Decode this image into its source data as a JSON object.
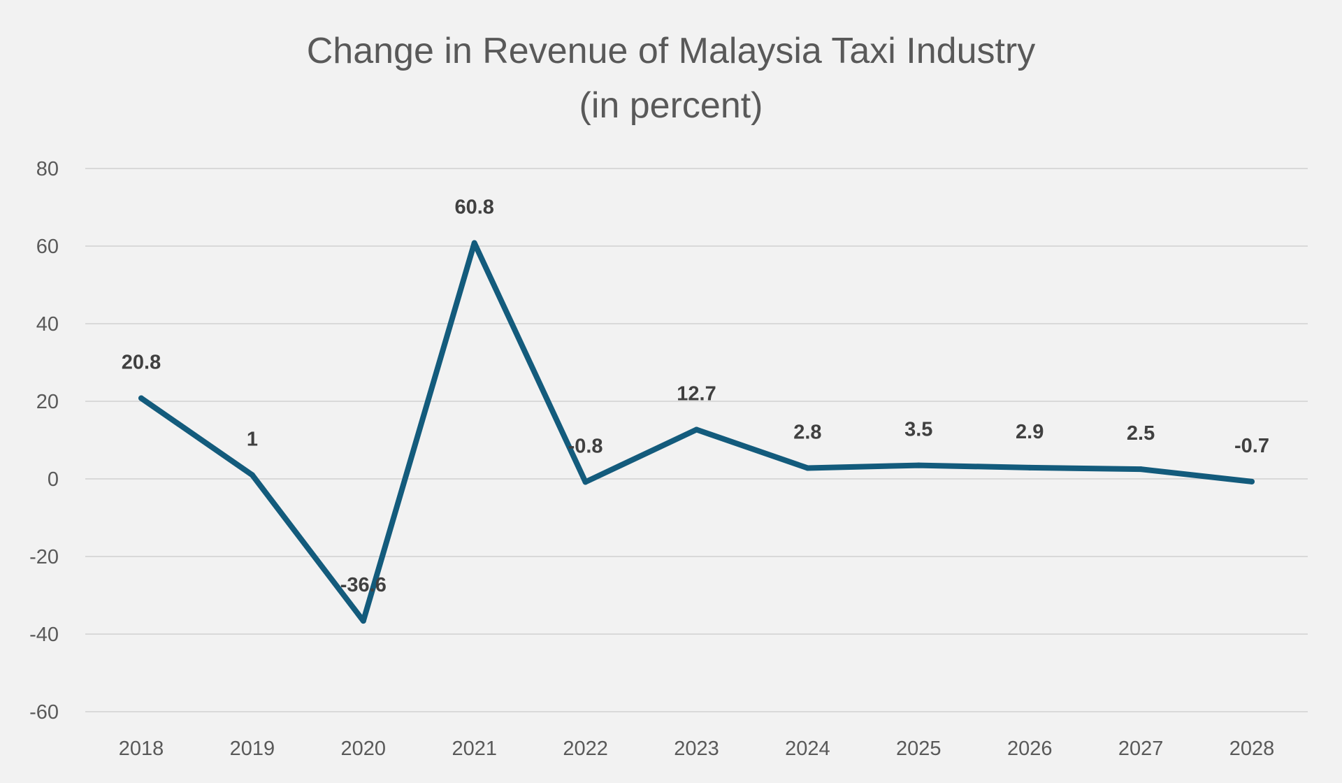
{
  "chart_data": {
    "type": "line",
    "title": "Change in Revenue of Malaysia Taxi Industry",
    "subtitle": "(in percent)",
    "xlabel": "",
    "ylabel": "",
    "categories": [
      "2018",
      "2019",
      "2020",
      "2021",
      "2022",
      "2023",
      "2024",
      "2025",
      "2026",
      "2027",
      "2028"
    ],
    "series": [
      {
        "values": [
          20.8,
          1,
          -36.6,
          60.8,
          -0.8,
          12.7,
          2.8,
          3.5,
          2.9,
          2.5,
          -0.7
        ],
        "labels": [
          "20.8",
          "1",
          "-36.6",
          "60.8",
          "-0.8",
          "12.7",
          "2.8",
          "3.5",
          "2.9",
          "2.5",
          "-0.7"
        ]
      }
    ],
    "ylim": [
      -60,
      80
    ],
    "yticks": [
      80,
      60,
      40,
      20,
      0,
      -20,
      -40,
      -60
    ],
    "grid": true,
    "legend": "none",
    "colors": {
      "line": "#135b7c",
      "background": "#f2f2f2",
      "grid": "#d9d9d9"
    }
  }
}
